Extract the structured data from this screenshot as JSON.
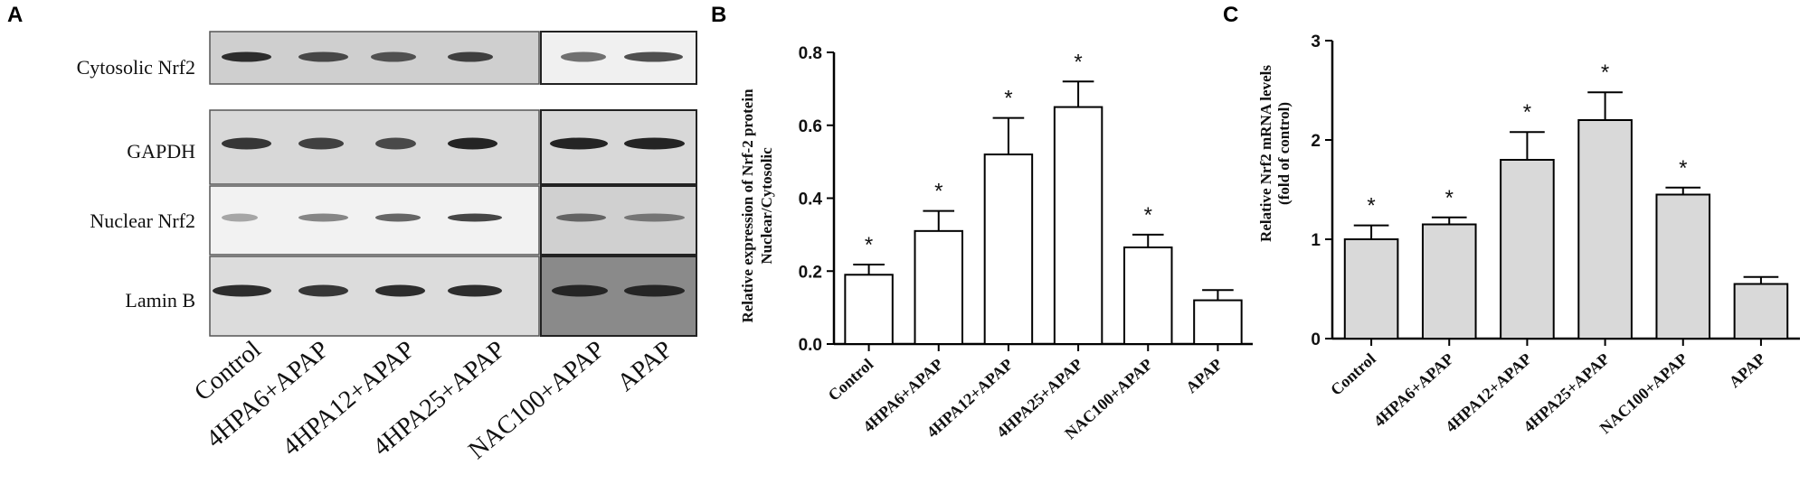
{
  "panel_a": {
    "panel_label": "A",
    "row_labels": [
      "Cytosolic Nrf2",
      "GAPDH",
      "Nuclear Nrf2",
      "Lamin B"
    ],
    "lane_labels": [
      "Control",
      "4HPA6+APAP",
      "4HPA12+APAP",
      "4HPA25+APAP",
      "NAC100+APAP",
      "APAP"
    ]
  },
  "chart_data": [
    {
      "type": "bar",
      "panel_label": "B",
      "categories": [
        "Control",
        "4HPA6+APAP",
        "4HPA12+APAP",
        "4HPA25+APAP",
        "NAC100+APAP",
        "APAP"
      ],
      "values": [
        0.19,
        0.31,
        0.52,
        0.65,
        0.265,
        0.12
      ],
      "errors": [
        0.028,
        0.055,
        0.1,
        0.07,
        0.035,
        0.028
      ],
      "significance": [
        "*",
        "*",
        "*",
        "*",
        "*",
        ""
      ],
      "ylabel_line1": "Relative expression of Nrf-2 protein",
      "ylabel_line2": "Nuclear/Cytosolic",
      "ylim": [
        0,
        0.8
      ],
      "yticks": [
        "0.0",
        "0.2",
        "0.4",
        "0.6",
        "0.8"
      ],
      "bar_color": "#ffffff",
      "grid": false
    },
    {
      "type": "bar",
      "panel_label": "C",
      "categories": [
        "Control",
        "4HPA6+APAP",
        "4HPA12+APAP",
        "4HPA25+APAP",
        "NAC100+APAP",
        "APAP"
      ],
      "values": [
        1.0,
        1.15,
        1.8,
        2.2,
        1.45,
        0.55
      ],
      "errors": [
        0.14,
        0.07,
        0.28,
        0.28,
        0.07,
        0.07
      ],
      "significance": [
        "*",
        "*",
        "*",
        "*",
        "*",
        ""
      ],
      "ylabel_line1": "Relative Nrf2 mRNA levels",
      "ylabel_line2": "(fold of control)",
      "ylim": [
        0,
        3
      ],
      "yticks": [
        "0",
        "1",
        "2",
        "3"
      ],
      "bar_color": "#d9d9d9",
      "grid": false
    }
  ]
}
